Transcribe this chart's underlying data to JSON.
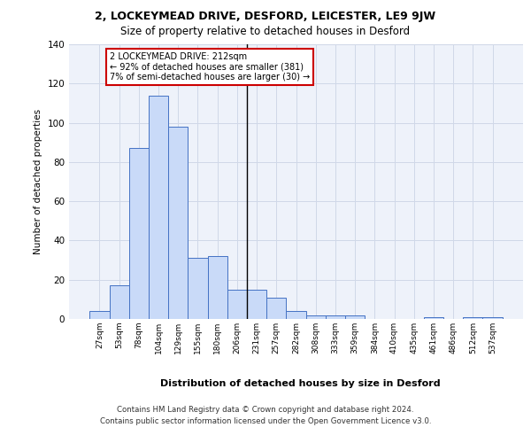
{
  "title1": "2, LOCKEYMEAD DRIVE, DESFORD, LEICESTER, LE9 9JW",
  "title2": "Size of property relative to detached houses in Desford",
  "xlabel": "Distribution of detached houses by size in Desford",
  "ylabel": "Number of detached properties",
  "bin_labels": [
    "27sqm",
    "53sqm",
    "78sqm",
    "104sqm",
    "129sqm",
    "155sqm",
    "180sqm",
    "206sqm",
    "231sqm",
    "257sqm",
    "282sqm",
    "308sqm",
    "333sqm",
    "359sqm",
    "384sqm",
    "410sqm",
    "435sqm",
    "461sqm",
    "486sqm",
    "512sqm",
    "537sqm"
  ],
  "bar_heights": [
    4,
    17,
    87,
    114,
    98,
    31,
    32,
    15,
    15,
    11,
    4,
    2,
    2,
    2,
    0,
    0,
    0,
    1,
    0,
    1,
    1
  ],
  "bar_color": "#c9daf8",
  "bar_edge_color": "#4472c4",
  "vline_color": "#000000",
  "annotation_text": "2 LOCKEYMEAD DRIVE: 212sqm\n← 92% of detached houses are smaller (381)\n7% of semi-detached houses are larger (30) →",
  "annotation_box_color": "#ffffff",
  "annotation_box_edge": "#cc0000",
  "grid_color": "#d0d8e8",
  "background_color": "#eef2fa",
  "footer1": "Contains HM Land Registry data © Crown copyright and database right 2024.",
  "footer2": "Contains public sector information licensed under the Open Government Licence v3.0.",
  "ylim": [
    0,
    140
  ]
}
